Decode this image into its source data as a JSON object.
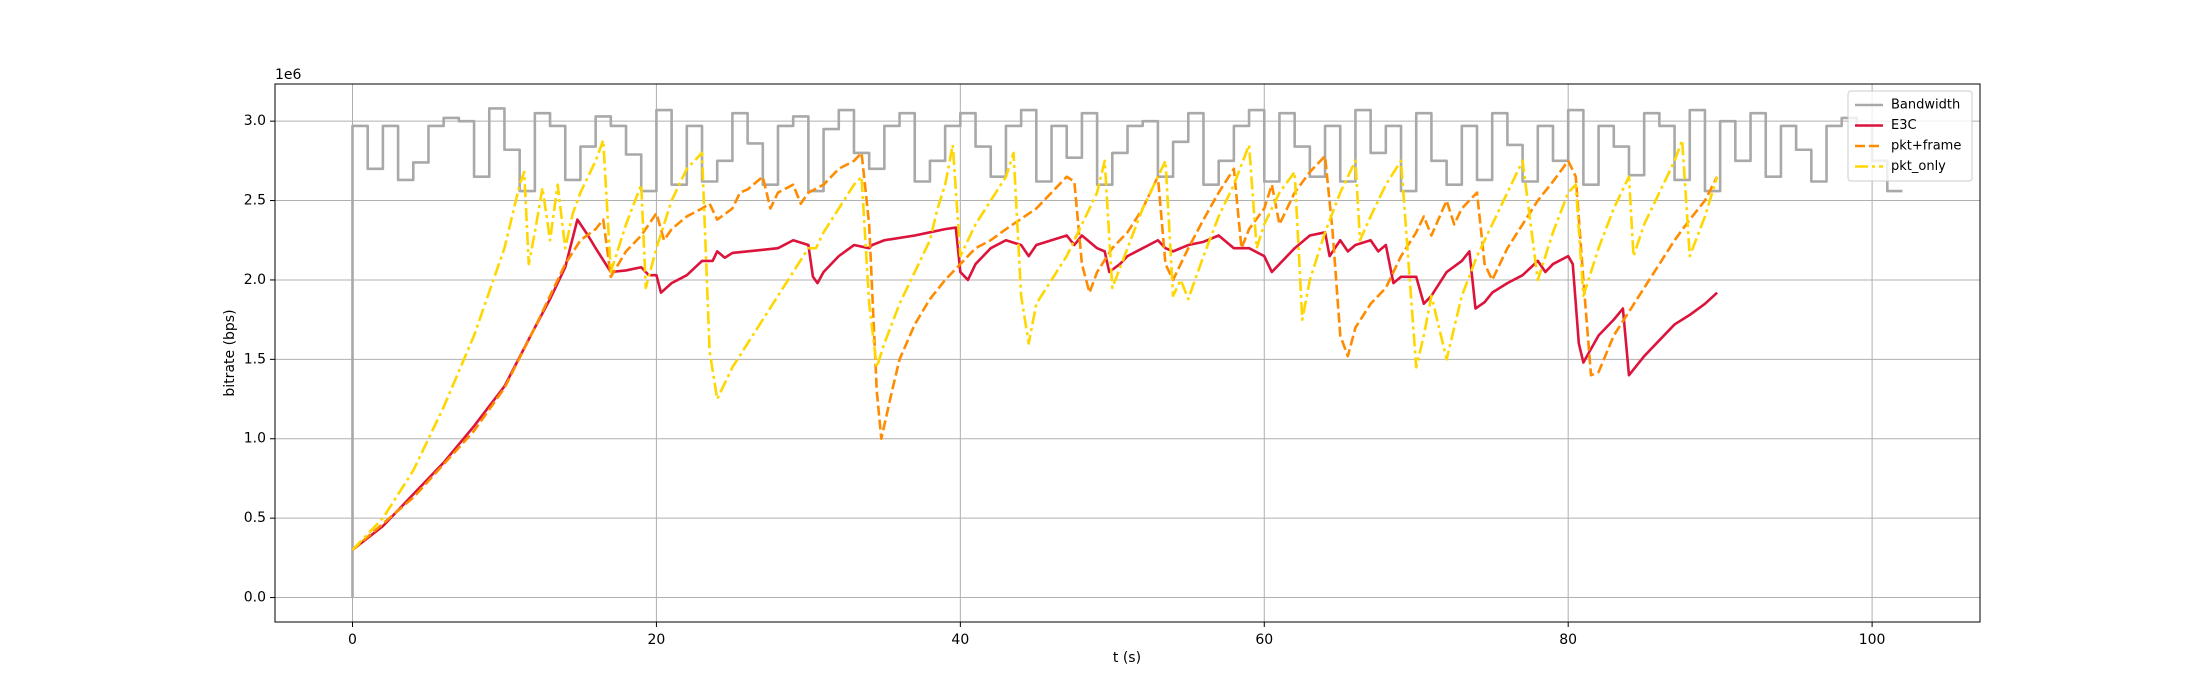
{
  "chart_data": {
    "type": "line",
    "x_label": "t (s)",
    "y_label": "bitrate (bps)",
    "y_offset_text": "1e6",
    "xlim": [
      -5.1,
      107.1
    ],
    "ylim": [
      -154000.0,
      3234000.0
    ],
    "xticks": [
      0,
      20,
      40,
      60,
      80,
      100
    ],
    "yticks": [
      {
        "value": 0,
        "label": "0.0"
      },
      {
        "value": 500000.0,
        "label": "0.5"
      },
      {
        "value": 1000000.0,
        "label": "1.0"
      },
      {
        "value": 1500000.0,
        "label": "1.5"
      },
      {
        "value": 2000000.0,
        "label": "2.0"
      },
      {
        "value": 2500000.0,
        "label": "2.5"
      },
      {
        "value": 3000000.0,
        "label": "3.0"
      }
    ],
    "grid": true,
    "legend": "upper right",
    "series": [
      {
        "name": "Bandwidth",
        "color": "#a9a9a9",
        "linestyle": "solid",
        "drawstyle": "steps-post",
        "x": [
          0,
          0,
          1,
          2,
          3,
          4,
          5,
          6,
          7,
          8,
          9,
          10,
          11,
          12,
          13,
          14,
          15,
          16,
          17,
          18,
          19,
          20,
          21,
          22,
          23,
          24,
          25,
          26,
          27,
          28,
          29,
          30,
          31,
          32,
          33,
          34,
          35,
          36,
          37,
          38,
          39,
          40,
          41,
          42,
          43,
          44,
          45,
          46,
          47,
          48,
          49,
          50,
          51,
          52,
          53,
          54,
          55,
          56,
          57,
          58,
          59,
          60,
          61,
          62,
          63,
          64,
          65,
          66,
          67,
          68,
          69,
          70,
          71,
          72,
          73,
          74,
          75,
          76,
          77,
          78,
          79,
          80,
          81,
          82,
          83,
          84,
          85,
          86,
          87,
          88,
          89,
          90,
          91,
          92,
          93,
          94,
          95,
          96,
          97,
          98,
          99,
          100,
          101,
          102
        ],
        "values": [
          0,
          2970000.0,
          2700000.0,
          2970000.0,
          2630000.0,
          2740000.0,
          2970000.0,
          3020000.0,
          3000000.0,
          2650000.0,
          3080000.0,
          2820000.0,
          2560000.0,
          3050000.0,
          2970000.0,
          2630000.0,
          2840000.0,
          3030000.0,
          2970000.0,
          2790000.0,
          2560000.0,
          3070000.0,
          2600000.0,
          2970000.0,
          2620000.0,
          2750000.0,
          3050000.0,
          2860000.0,
          2600000.0,
          2970000.0,
          3030000.0,
          2560000.0,
          2950000.0,
          3070000.0,
          2800000.0,
          2700000.0,
          2970000.0,
          3050000.0,
          2620000.0,
          2750000.0,
          2970000.0,
          3050000.0,
          2840000.0,
          2650000.0,
          2970000.0,
          3070000.0,
          2620000.0,
          2970000.0,
          2770000.0,
          3050000.0,
          2600000.0,
          2800000.0,
          2970000.0,
          3000000.0,
          2650000.0,
          2870000.0,
          3050000.0,
          2600000.0,
          2750000.0,
          2970000.0,
          3070000.0,
          2620000.0,
          3050000.0,
          2840000.0,
          2650000.0,
          2970000.0,
          2620000.0,
          3070000.0,
          2800000.0,
          2970000.0,
          2560000.0,
          3050000.0,
          2750000.0,
          2600000.0,
          2970000.0,
          2630000.0,
          3050000.0,
          2850000.0,
          2620000.0,
          2970000.0,
          2750000.0,
          3070000.0,
          2600000.0,
          2970000.0,
          2840000.0,
          2660000.0,
          3050000.0,
          2970000.0,
          2630000.0,
          3070000.0,
          2560000.0,
          3000000.0,
          2750000.0,
          3050000.0,
          2650000.0,
          2970000.0,
          2820000.0,
          2620000.0,
          2970000.0,
          3020000.0,
          2970000.0,
          2750000.0,
          2560000.0,
          2560000.0
        ]
      },
      {
        "name": "E3C",
        "color": "#dc143c",
        "linestyle": "solid",
        "drawstyle": "default",
        "x": [
          0,
          2,
          4,
          6,
          8,
          10,
          12,
          13,
          14,
          14.8,
          15.5,
          16,
          17,
          18,
          19,
          19.5,
          20,
          20.3,
          21,
          22,
          23,
          23.7,
          24,
          24.5,
          25,
          27,
          28,
          29,
          30,
          30.3,
          30.6,
          31,
          32,
          33,
          34,
          34.2,
          35,
          37,
          38,
          39,
          39.7,
          40,
          40.5,
          41,
          42,
          43,
          44,
          44.5,
          45,
          46,
          47,
          47.5,
          48,
          49,
          49.5,
          49.8,
          50.5,
          51,
          52,
          53,
          53.5,
          54,
          55,
          56,
          57,
          58,
          59,
          60,
          60.5,
          61,
          62,
          63,
          64,
          64.3,
          65,
          65.5,
          66,
          67,
          67.5,
          68,
          68.5,
          69,
          70,
          70.5,
          71,
          72,
          73,
          73.5,
          73.9,
          74.5,
          75,
          76,
          77,
          78,
          78.5,
          79,
          80,
          80.3,
          80.7,
          81,
          82,
          83,
          83.6,
          84,
          85,
          86,
          87,
          88,
          89,
          89.8
        ],
        "values": [
          300000.0,
          450000.0,
          650000.0,
          850000.0,
          1080000.0,
          1330000.0,
          1700000.0,
          1880000.0,
          2080000.0,
          2380000.0,
          2280000.0,
          2200000.0,
          2050000.0,
          2060000.0,
          2080000.0,
          2030000.0,
          2030000.0,
          1920000.0,
          1980000.0,
          2030000.0,
          2120000.0,
          2120000.0,
          2180000.0,
          2140000.0,
          2170000.0,
          2190000.0,
          2200000.0,
          2250000.0,
          2220000.0,
          2020000.0,
          1980000.0,
          2050000.0,
          2150000.0,
          2220000.0,
          2200000.0,
          2220000.0,
          2250000.0,
          2280000.0,
          2300000.0,
          2320000.0,
          2330000.0,
          2050000.0,
          2000000.0,
          2100000.0,
          2200000.0,
          2250000.0,
          2220000.0,
          2150000.0,
          2220000.0,
          2250000.0,
          2280000.0,
          2220000.0,
          2280000.0,
          2200000.0,
          2180000.0,
          2050000.0,
          2100000.0,
          2150000.0,
          2200000.0,
          2250000.0,
          2200000.0,
          2180000.0,
          2220000.0,
          2240000.0,
          2280000.0,
          2200000.0,
          2200000.0,
          2150000.0,
          2050000.0,
          2100000.0,
          2200000.0,
          2280000.0,
          2300000.0,
          2150000.0,
          2250000.0,
          2180000.0,
          2220000.0,
          2250000.0,
          2180000.0,
          2220000.0,
          1980000.0,
          2020000.0,
          2020000.0,
          1850000.0,
          1900000.0,
          2050000.0,
          2120000.0,
          2180000.0,
          1820000.0,
          1860000.0,
          1920000.0,
          1980000.0,
          2030000.0,
          2120000.0,
          2050000.0,
          2100000.0,
          2150000.0,
          2100000.0,
          1600000.0,
          1480000.0,
          1650000.0,
          1750000.0,
          1820000.0,
          1400000.0,
          1520000.0,
          1620000.0,
          1720000.0,
          1780000.0,
          1850000.0,
          1920000.0
        ]
      },
      {
        "name": "pkt+frame",
        "color": "#ff8c00",
        "linestyle": "dashed",
        "drawstyle": "default",
        "x": [
          0,
          4,
          8,
          10,
          12,
          14,
          15,
          16,
          16.5,
          17,
          18,
          19,
          20,
          20.5,
          21,
          22,
          23,
          23.5,
          24,
          25,
          25.5,
          26,
          27,
          27.5,
          28,
          29,
          29.5,
          30,
          31,
          32,
          33,
          33.5,
          34,
          34.5,
          34.8,
          35.5,
          36,
          37,
          38,
          39,
          40,
          41,
          42,
          43,
          45,
          46,
          47,
          47.5,
          48,
          48.5,
          49,
          50,
          51,
          52,
          53,
          53.5,
          54,
          55,
          56,
          57,
          58,
          58.5,
          59,
          60,
          60.5,
          61,
          62,
          63,
          64,
          64.5,
          65,
          65.5,
          66,
          67,
          68,
          69,
          70,
          70.5,
          71,
          72,
          72.5,
          73,
          74,
          74.5,
          75,
          76,
          77,
          78,
          79,
          80,
          80.5,
          81,
          81.5,
          82,
          83,
          84,
          85,
          86,
          87,
          88,
          89,
          89.8
        ],
        "values": [
          300000.0,
          630000.0,
          1050000.0,
          1320000.0,
          1700000.0,
          2100000.0,
          2250000.0,
          2320000.0,
          2380000.0,
          2020000.0,
          2180000.0,
          2280000.0,
          2420000.0,
          2250000.0,
          2320000.0,
          2400000.0,
          2450000.0,
          2480000.0,
          2380000.0,
          2450000.0,
          2550000.0,
          2570000.0,
          2650000.0,
          2450000.0,
          2550000.0,
          2600000.0,
          2480000.0,
          2550000.0,
          2600000.0,
          2700000.0,
          2750000.0,
          2800000.0,
          2350000.0,
          1300000.0,
          1000000.0,
          1300000.0,
          1500000.0,
          1720000.0,
          1880000.0,
          2000000.0,
          2100000.0,
          2200000.0,
          2250000.0,
          2320000.0,
          2450000.0,
          2550000.0,
          2650000.0,
          2620000.0,
          2100000.0,
          1920000.0,
          2050000.0,
          2200000.0,
          2300000.0,
          2450000.0,
          2650000.0,
          2100000.0,
          2000000.0,
          2200000.0,
          2380000.0,
          2550000.0,
          2700000.0,
          2200000.0,
          2320000.0,
          2450000.0,
          2600000.0,
          2350000.0,
          2550000.0,
          2680000.0,
          2780000.0,
          2300000.0,
          1650000.0,
          1520000.0,
          1700000.0,
          1850000.0,
          1950000.0,
          2150000.0,
          2300000.0,
          2400000.0,
          2280000.0,
          2500000.0,
          2350000.0,
          2450000.0,
          2550000.0,
          2100000.0,
          2000000.0,
          2200000.0,
          2350000.0,
          2500000.0,
          2620000.0,
          2750000.0,
          2650000.0,
          2000000.0,
          1400000.0,
          1420000.0,
          1650000.0,
          1800000.0,
          1950000.0,
          2100000.0,
          2250000.0,
          2380000.0,
          2500000.0,
          2650000.0
        ]
      },
      {
        "name": "pkt_only",
        "color": "#ffd700",
        "linestyle": "dashdot",
        "drawstyle": "default",
        "x": [
          0,
          2,
          4,
          6,
          8,
          10,
          11,
          11.3,
          11.6,
          12,
          12.5,
          13,
          13.5,
          14,
          14.5,
          15,
          16,
          16.5,
          17,
          18,
          19,
          19.3,
          20,
          21,
          22,
          23,
          23.5,
          24,
          25,
          26,
          27,
          28,
          29,
          30,
          30.5,
          31,
          32,
          33,
          33.5,
          34,
          34.5,
          35,
          36,
          37,
          38,
          38.5,
          39,
          39.5,
          40,
          41,
          42,
          43,
          43.5,
          44,
          44.5,
          45,
          46,
          47,
          48,
          49,
          49.5,
          50,
          51,
          52,
          53,
          53.5,
          54,
          54.5,
          55,
          56,
          57,
          58,
          59,
          59.5,
          60,
          61,
          62,
          62.5,
          63,
          64,
          65,
          66,
          66.3,
          67,
          68,
          69,
          70,
          70.5,
          71,
          72,
          73,
          74,
          75,
          76,
          77,
          78,
          79,
          80,
          80.5,
          81,
          82,
          83,
          84,
          84.3,
          85,
          86,
          87,
          87.5,
          88,
          89,
          89.8
        ],
        "values": [
          300000.0,
          500000.0,
          800000.0,
          1200000.0,
          1650000.0,
          2200000.0,
          2600000.0,
          2680000.0,
          2100000.0,
          2300000.0,
          2580000.0,
          2250000.0,
          2600000.0,
          2200000.0,
          2420000.0,
          2550000.0,
          2750000.0,
          2880000.0,
          2050000.0,
          2350000.0,
          2600000.0,
          1950000.0,
          2200000.0,
          2500000.0,
          2700000.0,
          2800000.0,
          1550000.0,
          1250000.0,
          1450000.0,
          1600000.0,
          1750000.0,
          1900000.0,
          2050000.0,
          2200000.0,
          2200000.0,
          2300000.0,
          2450000.0,
          2600000.0,
          2650000.0,
          1850000.0,
          1450000.0,
          1600000.0,
          1850000.0,
          2050000.0,
          2250000.0,
          2450000.0,
          2600000.0,
          2850000.0,
          2150000.0,
          2350000.0,
          2500000.0,
          2650000.0,
          2800000.0,
          1900000.0,
          1600000.0,
          1850000.0,
          2000000.0,
          2150000.0,
          2350000.0,
          2550000.0,
          2750000.0,
          1950000.0,
          2200000.0,
          2450000.0,
          2650000.0,
          2750000.0,
          1900000.0,
          2000000.0,
          1880000.0,
          2150000.0,
          2400000.0,
          2600000.0,
          2850000.0,
          2200000.0,
          2350000.0,
          2550000.0,
          2680000.0,
          1750000.0,
          2000000.0,
          2300000.0,
          2550000.0,
          2750000.0,
          2250000.0,
          2400000.0,
          2600000.0,
          2750000.0,
          1450000.0,
          1650000.0,
          1900000.0,
          1500000.0,
          1900000.0,
          2150000.0,
          2350000.0,
          2550000.0,
          2750000.0,
          2000000.0,
          2300000.0,
          2550000.0,
          2600000.0,
          1900000.0,
          2200000.0,
          2450000.0,
          2650000.0,
          2150000.0,
          2350000.0,
          2550000.0,
          2750000.0,
          2880000.0,
          2150000.0,
          2400000.0,
          2650000.0
        ]
      }
    ]
  }
}
